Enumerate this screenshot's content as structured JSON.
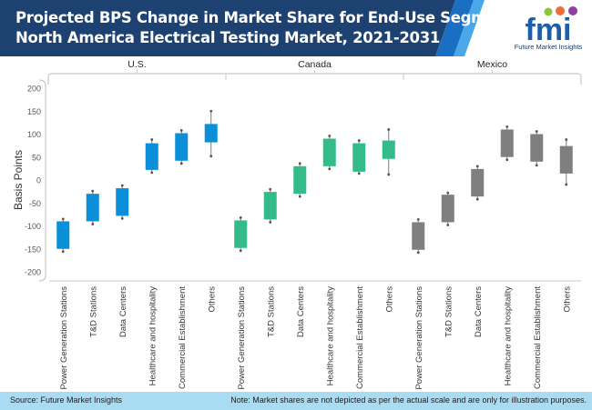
{
  "header": {
    "title_line1": "Projected BPS Change in Market Share for End-Use Segment in",
    "title_line2": "North America Electrical Testing Market, 2021-2031",
    "logo_text": "fmi",
    "logo_subtitle": "Future Market Insights",
    "colors": {
      "banner": "#1d4170",
      "accent": "#1a6fc2",
      "logo_blue": "#1e5ea8"
    }
  },
  "footer": {
    "source": "Source: Future Market Insights",
    "note": "Note: Market shares are not depicted as per the actual scale and are only for illustration purposes."
  },
  "chart_data": {
    "type": "box",
    "title": "Projected BPS Change in Market Share for End-Use Segment in North America Electrical Testing Market, 2021-2031",
    "xlabel": "",
    "ylabel": "Basis Points",
    "ylim": [
      -200,
      200
    ],
    "yticks": [
      200,
      150,
      100,
      50,
      0,
      -50,
      -100,
      -150,
      -200
    ],
    "grid": false,
    "categories": [
      "Power Generation Stations",
      "T&D Stations",
      "Data Centers",
      "Healthcare and hospitality",
      "Commercial Establishment",
      "Others"
    ],
    "groups": [
      {
        "name": "U.S.",
        "color": "#0a8fd8",
        "boxes": [
          {
            "category": "Power Generation Stations",
            "low": -156,
            "q1": -150,
            "q3": -90,
            "high": -85
          },
          {
            "category": "T&D Stations",
            "low": -96,
            "q1": -90,
            "q3": -30,
            "high": -24
          },
          {
            "category": "Data Centers",
            "low": -84,
            "q1": -78,
            "q3": -18,
            "high": -12
          },
          {
            "category": "Healthcare and hospitality",
            "low": 16,
            "q1": 22,
            "q3": 80,
            "high": 88
          },
          {
            "category": "Commercial Establishment",
            "low": 36,
            "q1": 42,
            "q3": 102,
            "high": 108
          },
          {
            "category": "Others",
            "low": 52,
            "q1": 82,
            "q3": 122,
            "high": 150
          }
        ]
      },
      {
        "name": "Canada",
        "color": "#33bb8a",
        "boxes": [
          {
            "category": "Power Generation Stations",
            "low": -154,
            "q1": -148,
            "q3": -88,
            "high": -82
          },
          {
            "category": "T&D Stations",
            "low": -92,
            "q1": -86,
            "q3": -26,
            "high": -20
          },
          {
            "category": "Data Centers",
            "low": -36,
            "q1": -30,
            "q3": 30,
            "high": 36
          },
          {
            "category": "Healthcare and hospitality",
            "low": 24,
            "q1": 30,
            "q3": 90,
            "high": 96
          },
          {
            "category": "Commercial Establishment",
            "low": 14,
            "q1": 18,
            "q3": 80,
            "high": 86
          },
          {
            "category": "Others",
            "low": 12,
            "q1": 46,
            "q3": 86,
            "high": 110
          }
        ]
      },
      {
        "name": "Mexico",
        "color": "#7f7f7f",
        "boxes": [
          {
            "category": "Power Generation Stations",
            "low": -158,
            "q1": -152,
            "q3": -92,
            "high": -86
          },
          {
            "category": "T&D Stations",
            "low": -98,
            "q1": -92,
            "q3": -32,
            "high": -28
          },
          {
            "category": "Data Centers",
            "low": -42,
            "q1": -36,
            "q3": 24,
            "high": 30
          },
          {
            "category": "Healthcare and hospitality",
            "low": 44,
            "q1": 50,
            "q3": 110,
            "high": 116
          },
          {
            "category": "Commercial Establishment",
            "low": 32,
            "q1": 40,
            "q3": 100,
            "high": 106
          },
          {
            "category": "Others",
            "low": -10,
            "q1": 14,
            "q3": 74,
            "high": 88
          }
        ]
      }
    ]
  }
}
